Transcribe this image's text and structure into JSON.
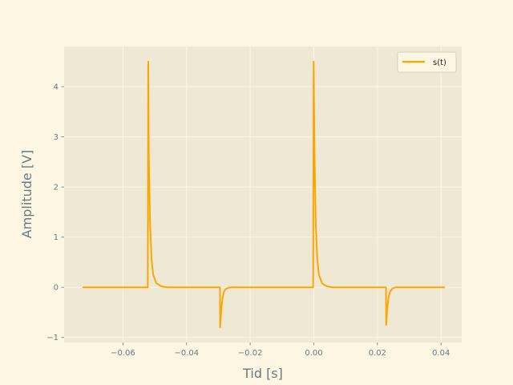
{
  "chart_data": {
    "type": "line",
    "title": "",
    "xlabel": "Tid [s]",
    "ylabel": "Amplitude [V]",
    "xlim": [
      -0.0785,
      0.0465
    ],
    "ylim": [
      -1.1,
      4.8
    ],
    "xticks": [
      -0.06,
      -0.04,
      -0.02,
      0.0,
      0.02,
      0.04
    ],
    "xtick_labels": [
      "−0.06",
      "−0.04",
      "−0.02",
      "0.00",
      "0.02",
      "0.04"
    ],
    "yticks": [
      -1,
      0,
      1,
      2,
      3,
      4
    ],
    "ytick_labels": [
      "−1",
      "0",
      "1",
      "2",
      "3",
      "4"
    ],
    "grid": true,
    "legend_position": "top-right",
    "series": [
      {
        "name": "s(t)",
        "color": "#ffa500",
        "x": [
          -0.0725,
          -0.06,
          -0.0522,
          -0.05205,
          -0.0519,
          -0.0515,
          -0.051,
          -0.0505,
          -0.0495,
          -0.048,
          -0.046,
          -0.04,
          -0.035,
          -0.0295,
          -0.02945,
          -0.0291,
          -0.0287,
          -0.0283,
          -0.0278,
          -0.027,
          -0.026,
          -0.02,
          -0.01,
          -0.0002,
          -5e-05,
          0.0002,
          0.0006,
          0.0011,
          0.0016,
          0.0026,
          0.004,
          0.006,
          0.015,
          0.0227,
          0.02275,
          0.0231,
          0.0235,
          0.024,
          0.0248,
          0.0258,
          0.03,
          0.035,
          0.041
        ],
        "y": [
          0.0,
          0.0,
          0.0,
          4.5,
          2.7,
          1.3,
          0.55,
          0.25,
          0.08,
          0.02,
          0.0,
          0.0,
          0.0,
          0.0,
          -0.8,
          -0.45,
          -0.22,
          -0.1,
          -0.04,
          -0.01,
          0.0,
          0.0,
          0.0,
          0.0,
          4.5,
          2.7,
          1.3,
          0.55,
          0.25,
          0.08,
          0.02,
          0.0,
          0.0,
          0.0,
          -0.75,
          -0.42,
          -0.2,
          -0.08,
          -0.02,
          0.0,
          0.0,
          0.0,
          0.0
        ]
      }
    ]
  }
}
